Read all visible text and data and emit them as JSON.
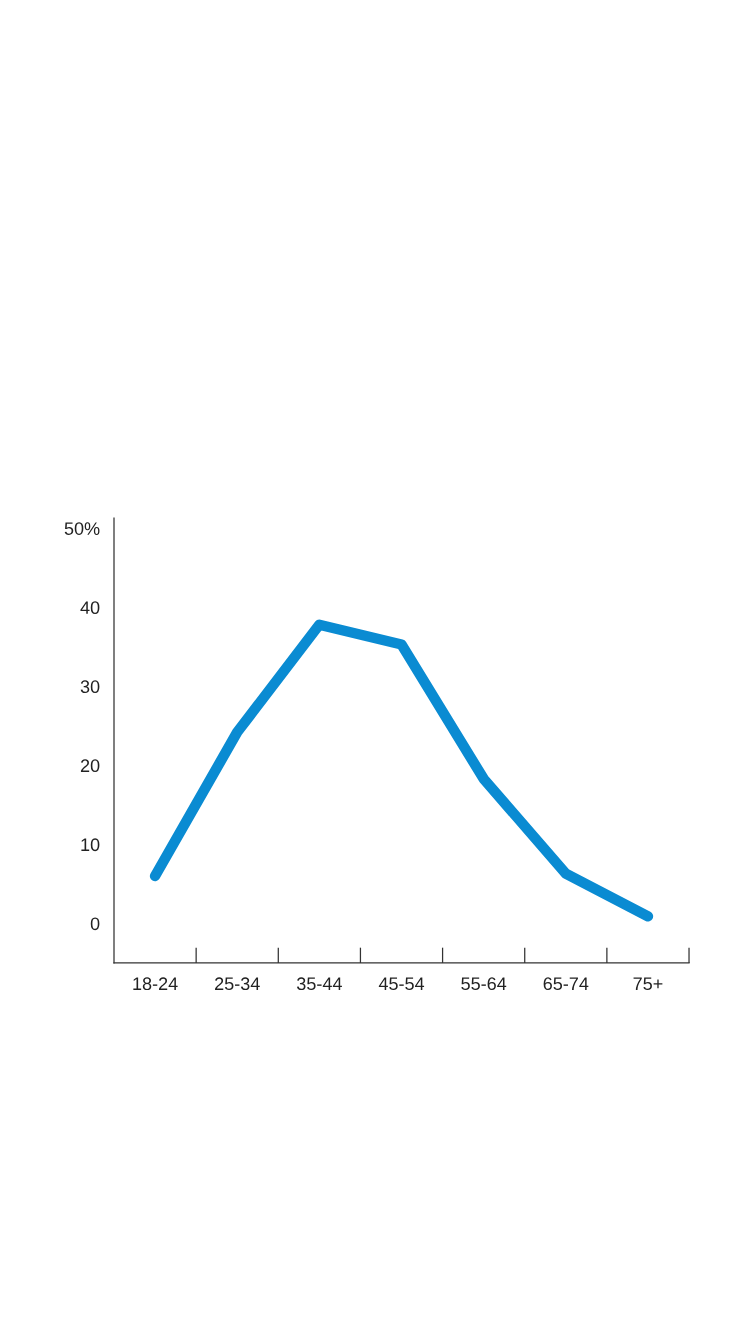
{
  "chart_data": {
    "type": "line",
    "categories": [
      "18-24",
      "25-34",
      "35-44",
      "45-54",
      "55-64",
      "65-74",
      "75+"
    ],
    "series": [
      {
        "color": "#0a8bd2",
        "values": [
          6,
          24.2,
          37.8,
          35.3,
          18.3,
          6.3,
          0.9
        ]
      }
    ],
    "ylim": [
      -5,
      51.3
    ],
    "yticks": [
      0,
      10,
      20,
      30,
      40,
      {
        "value": 50,
        "label": "50%"
      }
    ],
    "grid": false,
    "legend": false,
    "marker": "none",
    "line_style": "solid"
  }
}
